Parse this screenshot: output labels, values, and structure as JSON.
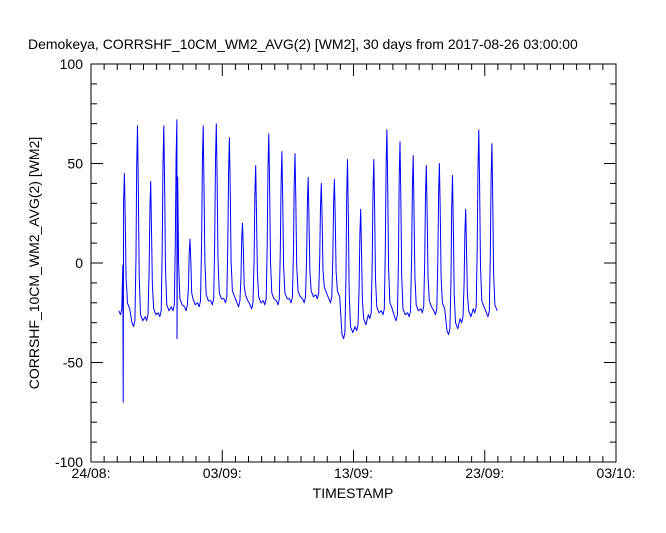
{
  "chart_data": {
    "type": "line",
    "title": "Demokeya, CORRSHF_10CM_WM2_AVG(2) [WM2], 30 days from  2017-08-26 03:00:00",
    "xlabel": "TIMESTAMP",
    "ylabel": "CORRSHF_10CM_WM2_AVG(2) [WM2]",
    "x_unit": "days since 24/08 00:00",
    "xlim": [
      0,
      40
    ],
    "ylim": [
      -100,
      100
    ],
    "y_ticks": [
      {
        "value": -100,
        "label": "-100"
      },
      {
        "value": -50,
        "label": "-50"
      },
      {
        "value": 0,
        "label": "0"
      },
      {
        "value": 50,
        "label": "50"
      },
      {
        "value": 100,
        "label": "100"
      }
    ],
    "x_ticks": [
      {
        "value": 0,
        "label": "24/08:"
      },
      {
        "value": 10,
        "label": "03/09:"
      },
      {
        "value": 20,
        "label": "13/09:"
      },
      {
        "value": 30,
        "label": "23/09:"
      },
      {
        "value": 40,
        "label": "03/10:"
      }
    ],
    "series": [
      {
        "name": "CORRSHF_10CM_WM2_AVG(2)",
        "color": "#0000ff",
        "days": [
          {
            "peak": 45,
            "min": -26
          },
          {
            "peak": 69,
            "min": -32
          },
          {
            "peak": 41,
            "min": -29
          },
          {
            "peak": 69,
            "min": -27
          },
          {
            "peak": 72,
            "min": -24
          },
          {
            "peak": 12,
            "min": -24
          },
          {
            "peak": 69,
            "min": -22
          },
          {
            "peak": 70,
            "min": -21
          },
          {
            "peak": 63,
            "min": -20
          },
          {
            "peak": 20,
            "min": -22
          },
          {
            "peak": 49,
            "min": -23
          },
          {
            "peak": 65,
            "min": -21
          },
          {
            "peak": 56,
            "min": -21
          },
          {
            "peak": 55,
            "min": -20
          },
          {
            "peak": 43,
            "min": -20
          },
          {
            "peak": 40,
            "min": -18
          },
          {
            "peak": 42,
            "min": -20
          },
          {
            "peak": 52,
            "min": -38
          },
          {
            "peak": 27,
            "min": -34
          },
          {
            "peak": 52,
            "min": -28
          },
          {
            "peak": 67,
            "min": -26
          },
          {
            "peak": 61,
            "min": -29
          },
          {
            "peak": 54,
            "min": -27
          },
          {
            "peak": 49,
            "min": -25
          },
          {
            "peak": 50,
            "min": -26
          },
          {
            "peak": 44,
            "min": -36
          },
          {
            "peak": 27,
            "min": -30
          },
          {
            "peak": 67,
            "min": -25
          },
          {
            "peak": 60,
            "min": -27
          }
        ],
        "anomalies": [
          {
            "day": 2.45,
            "value": -70
          },
          {
            "day": 2.75,
            "value": -16
          },
          {
            "day": 6.55,
            "value": -38
          }
        ]
      }
    ]
  }
}
